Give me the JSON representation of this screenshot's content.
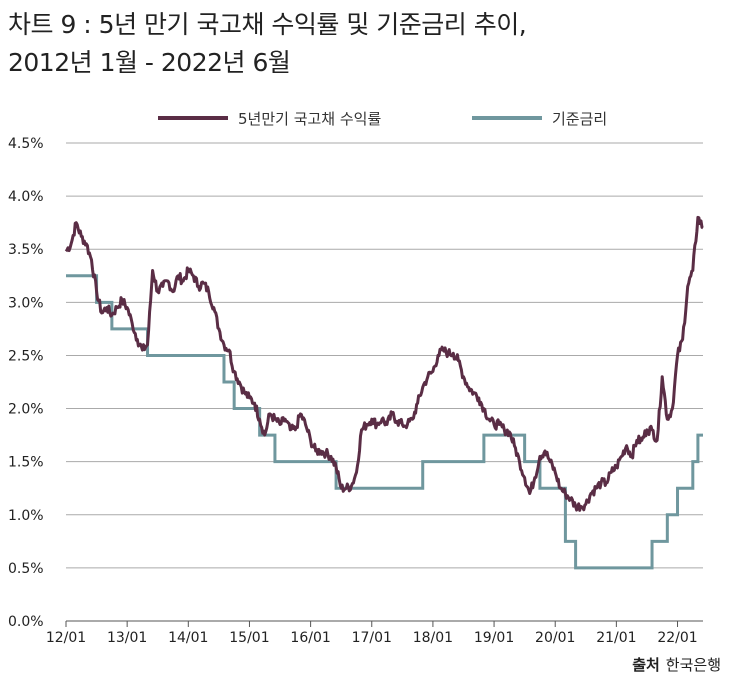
{
  "header": {
    "title_line1": "차트 9 : 5년 만기 국고채 수익률 및 기준금리 추이,",
    "title_line2": "2012년 1월 - 2022년 6월"
  },
  "source": {
    "label": "출처",
    "text": "한국은행"
  },
  "colors": {
    "bond": "#5a2d45",
    "base": "#6f979e",
    "grid": "#aaaaaa",
    "axis": "#555555"
  },
  "chart_data": {
    "type": "line",
    "title": "차트 9 : 5년 만기 국고채 수익률 및 기준금리 추이, 2012년 1월 - 2022년 6월",
    "xlabel": "",
    "ylabel": "",
    "x_tick_labels": [
      "12/01",
      "13/01",
      "14/01",
      "15/01",
      "16/01",
      "17/01",
      "18/01",
      "19/01",
      "20/01",
      "21/01",
      "22/01"
    ],
    "y_tick_labels": [
      "0.0%",
      "0.5%",
      "1.0%",
      "1.5%",
      "2.0%",
      "2.5%",
      "3.0%",
      "3.5%",
      "4.0%",
      "4.5%"
    ],
    "xlim": [
      "2012-01",
      "2022-06"
    ],
    "ylim": [
      0,
      4.5
    ],
    "grid": "horizontal",
    "legend_position": "top",
    "series": [
      {
        "name": "5년만기 국고채 수익률",
        "x": [
          "2012-01",
          "2012-02",
          "2012-03",
          "2012-04",
          "2012-05",
          "2012-06",
          "2012-07",
          "2012-08",
          "2012-09",
          "2012-10",
          "2012-11",
          "2012-12",
          "2013-01",
          "2013-02",
          "2013-03",
          "2013-04",
          "2013-05",
          "2013-06",
          "2013-07",
          "2013-08",
          "2013-09",
          "2013-10",
          "2013-11",
          "2013-12",
          "2014-01",
          "2014-02",
          "2014-03",
          "2014-04",
          "2014-05",
          "2014-06",
          "2014-07",
          "2014-08",
          "2014-09",
          "2014-10",
          "2014-11",
          "2014-12",
          "2015-01",
          "2015-02",
          "2015-03",
          "2015-04",
          "2015-05",
          "2015-06",
          "2015-07",
          "2015-08",
          "2015-09",
          "2015-10",
          "2015-11",
          "2015-12",
          "2016-01",
          "2016-02",
          "2016-03",
          "2016-04",
          "2016-05",
          "2016-06",
          "2016-07",
          "2016-08",
          "2016-09",
          "2016-10",
          "2016-11",
          "2016-12",
          "2017-01",
          "2017-02",
          "2017-03",
          "2017-04",
          "2017-05",
          "2017-06",
          "2017-07",
          "2017-08",
          "2017-09",
          "2017-10",
          "2017-11",
          "2017-12",
          "2018-01",
          "2018-02",
          "2018-03",
          "2018-04",
          "2018-05",
          "2018-06",
          "2018-07",
          "2018-08",
          "2018-09",
          "2018-10",
          "2018-11",
          "2018-12",
          "2019-01",
          "2019-02",
          "2019-03",
          "2019-04",
          "2019-05",
          "2019-06",
          "2019-07",
          "2019-08",
          "2019-09",
          "2019-10",
          "2019-11",
          "2019-12",
          "2020-01",
          "2020-02",
          "2020-03",
          "2020-04",
          "2020-05",
          "2020-06",
          "2020-07",
          "2020-08",
          "2020-09",
          "2020-10",
          "2020-11",
          "2020-12",
          "2021-01",
          "2021-02",
          "2021-03",
          "2021-04",
          "2021-05",
          "2021-06",
          "2021-07",
          "2021-08",
          "2021-09",
          "2021-10",
          "2021-11",
          "2021-12",
          "2022-01",
          "2022-02",
          "2022-03",
          "2022-04",
          "2022-05",
          "2022-06"
        ],
        "values": [
          3.48,
          3.55,
          3.75,
          3.62,
          3.55,
          3.4,
          3.1,
          2.9,
          2.95,
          2.88,
          2.95,
          3.02,
          2.95,
          2.8,
          2.65,
          2.55,
          2.6,
          3.3,
          3.1,
          3.15,
          3.2,
          3.1,
          3.25,
          3.2,
          3.3,
          3.25,
          3.15,
          3.18,
          3.1,
          2.95,
          2.75,
          2.6,
          2.55,
          2.35,
          2.25,
          2.15,
          2.1,
          2.05,
          1.9,
          1.75,
          1.95,
          1.9,
          1.85,
          1.9,
          1.8,
          1.8,
          1.95,
          1.85,
          1.7,
          1.6,
          1.6,
          1.58,
          1.55,
          1.45,
          1.25,
          1.25,
          1.27,
          1.4,
          1.8,
          1.85,
          1.9,
          1.85,
          1.9,
          1.85,
          1.95,
          1.88,
          1.85,
          1.85,
          1.9,
          2.05,
          2.2,
          2.3,
          2.35,
          2.5,
          2.55,
          2.52,
          2.52,
          2.45,
          2.3,
          2.2,
          2.15,
          2.1,
          2.0,
          1.9,
          1.85,
          1.85,
          1.8,
          1.78,
          1.65,
          1.5,
          1.35,
          1.2,
          1.35,
          1.55,
          1.6,
          1.5,
          1.4,
          1.25,
          1.2,
          1.15,
          1.08,
          1.08,
          1.1,
          1.2,
          1.25,
          1.3,
          1.3,
          1.4,
          1.45,
          1.55,
          1.65,
          1.55,
          1.7,
          1.7,
          1.8,
          1.8,
          1.7,
          2.3,
          1.9,
          2.0,
          2.5,
          2.65,
          3.15,
          3.3,
          3.8,
          3.7
        ]
      },
      {
        "name": "기준금리",
        "x": [
          "2012-01",
          "2012-07",
          "2012-10",
          "2013-05",
          "2014-08",
          "2014-10",
          "2015-03",
          "2015-06",
          "2016-06",
          "2017-11",
          "2018-11",
          "2019-07",
          "2019-10",
          "2020-03",
          "2020-05",
          "2021-08",
          "2021-11",
          "2022-01",
          "2022-04",
          "2022-05",
          "2022-06"
        ],
        "values": [
          3.25,
          3.0,
          2.75,
          2.5,
          2.25,
          2.0,
          1.75,
          1.5,
          1.25,
          1.5,
          1.75,
          1.5,
          1.25,
          0.75,
          0.5,
          0.75,
          1.0,
          1.25,
          1.5,
          1.75,
          1.75
        ]
      }
    ]
  }
}
